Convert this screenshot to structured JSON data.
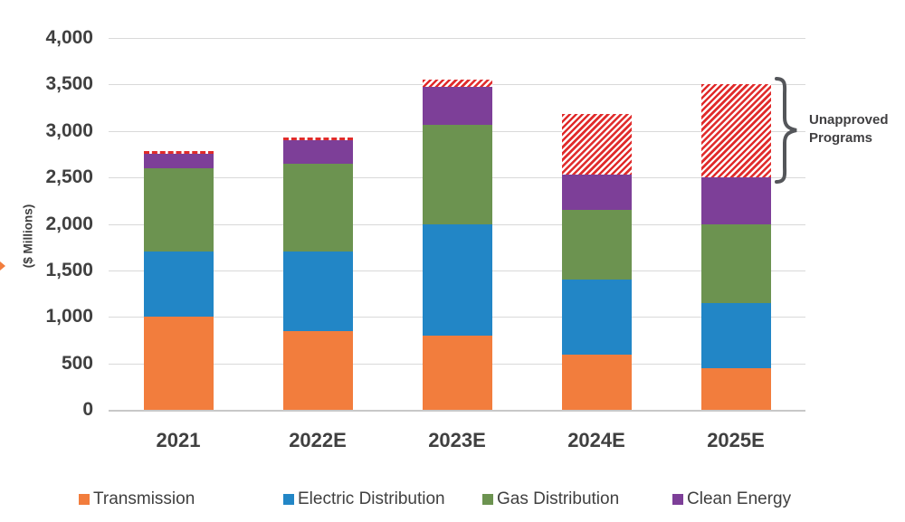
{
  "y_axis": {
    "title": "($ Millions)",
    "ticks_top_to_bottom": [
      "4,000",
      "3,500",
      "3,000",
      "2,500",
      "2,000",
      "1,500",
      "1,000",
      "500",
      "0"
    ]
  },
  "annotation": {
    "lines": [
      "Unapproved",
      "Programs"
    ]
  },
  "colors": {
    "transmission": "#f27d3d",
    "electric_distribution": "#2286c6",
    "gas_distribution": "#6c9350",
    "clean_energy": "#7d3f98",
    "unapproved_hatch": "#e02b2b",
    "text": "#404040",
    "gridline": "#d9d9d9"
  },
  "chart_data": {
    "type": "bar",
    "stacked": true,
    "title": "",
    "xlabel": "",
    "ylabel": "($ Millions)",
    "ylim": [
      0,
      4000
    ],
    "ytick_step": 500,
    "grid": true,
    "legend_position": "bottom",
    "categories": [
      "2021",
      "2022E",
      "2023E",
      "2024E",
      "2025E"
    ],
    "series": [
      {
        "name": "Transmission",
        "color": "#f27d3d",
        "in_legend": true,
        "values": [
          1000,
          850,
          800,
          590,
          450
        ]
      },
      {
        "name": "Electric Distribution",
        "color": "#2286c6",
        "in_legend": true,
        "values": [
          700,
          850,
          1200,
          810,
          700
        ]
      },
      {
        "name": "Gas Distribution",
        "color": "#6c9350",
        "in_legend": true,
        "values": [
          900,
          950,
          1070,
          750,
          850
        ]
      },
      {
        "name": "Clean Energy",
        "color": "#7d3f98",
        "in_legend": true,
        "values": [
          150,
          250,
          400,
          380,
          500
        ]
      },
      {
        "name": "Unapproved Programs",
        "color": "#e02b2b",
        "in_legend": false,
        "style": "hatched",
        "values": [
          10,
          30,
          80,
          650,
          1000
        ],
        "render_style_per_bar": [
          "dashed-line",
          "dashed-line",
          "band",
          "band",
          "band"
        ]
      }
    ],
    "stack_totals": [
      2760,
      2930,
      3550,
      3180,
      3500
    ]
  }
}
